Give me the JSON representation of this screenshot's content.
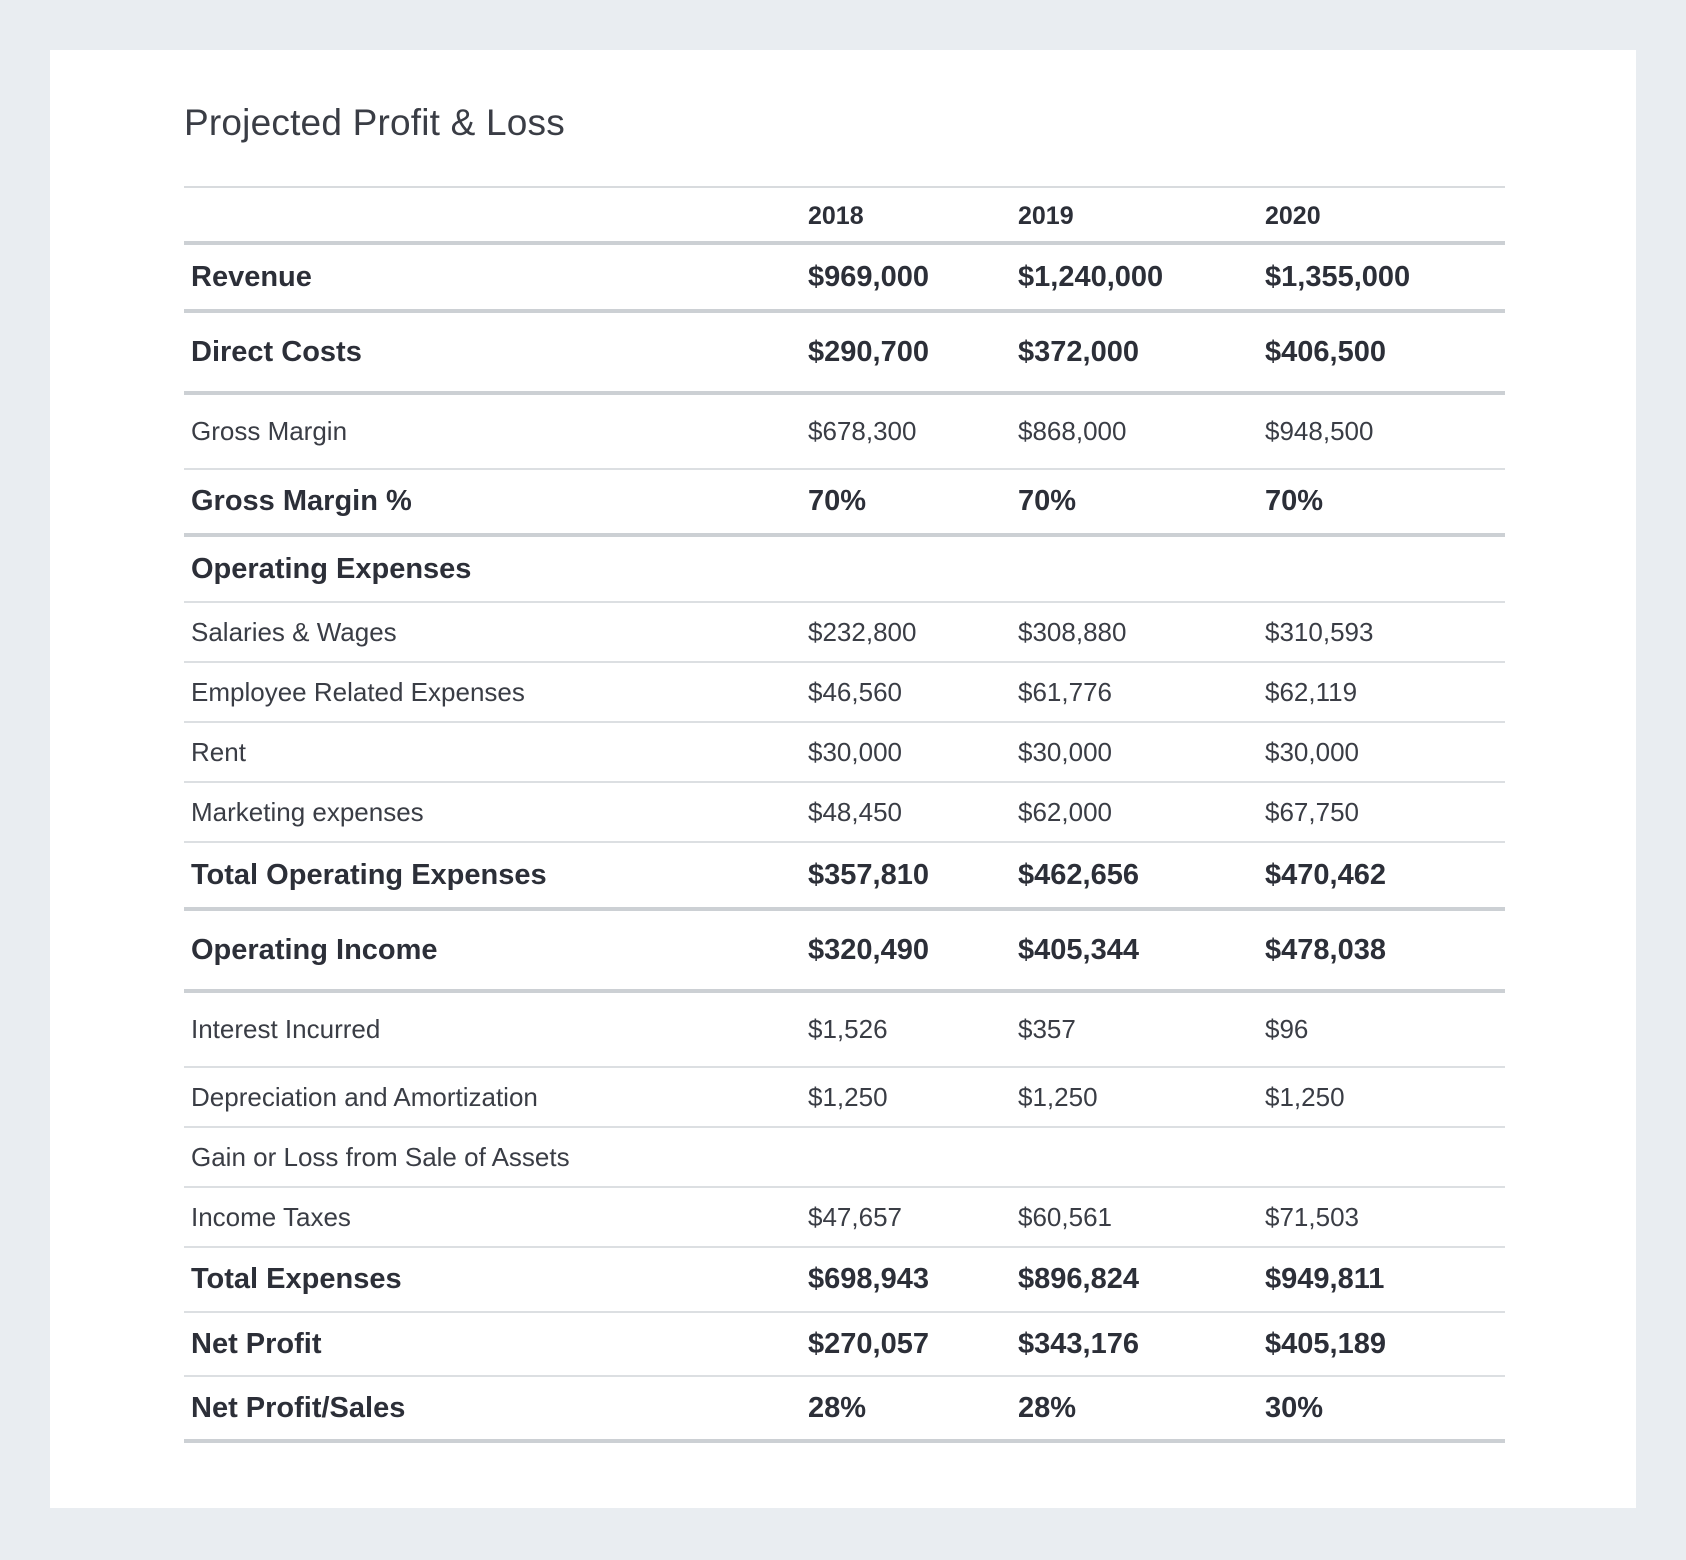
{
  "title": "Projected Profit & Loss",
  "columns": [
    "",
    "2018",
    "2019",
    "2020"
  ],
  "rows": [
    {
      "label": "Revenue",
      "values": [
        "$969,000",
        "$1,240,000",
        "$1,355,000"
      ],
      "bold": true
    },
    {
      "label": "Direct Costs",
      "values": [
        "$290,700",
        "$372,000",
        "$406,500"
      ],
      "bold": true
    },
    {
      "label": "Gross Margin",
      "values": [
        "$678,300",
        "$868,000",
        "$948,500"
      ],
      "bold": false
    },
    {
      "label": "Gross Margin %",
      "values": [
        "70%",
        "70%",
        "70%"
      ],
      "bold": true
    },
    {
      "label": "Operating Expenses",
      "values": [
        "",
        "",
        ""
      ],
      "bold": true
    },
    {
      "label": "Salaries & Wages",
      "values": [
        "$232,800",
        "$308,880",
        "$310,593"
      ],
      "bold": false
    },
    {
      "label": "Employee Related Expenses",
      "values": [
        "$46,560",
        "$61,776",
        "$62,119"
      ],
      "bold": false
    },
    {
      "label": "Rent",
      "values": [
        "$30,000",
        "$30,000",
        "$30,000"
      ],
      "bold": false
    },
    {
      "label": "Marketing expenses",
      "values": [
        "$48,450",
        "$62,000",
        "$67,750"
      ],
      "bold": false
    },
    {
      "label": "Total Operating Expenses",
      "values": [
        "$357,810",
        "$462,656",
        "$470,462"
      ],
      "bold": true
    },
    {
      "label": "Operating Income",
      "values": [
        "$320,490",
        "$405,344",
        "$478,038"
      ],
      "bold": true
    },
    {
      "label": "Interest Incurred",
      "values": [
        "$1,526",
        "$357",
        "$96"
      ],
      "bold": false
    },
    {
      "label": "Depreciation and Amortization",
      "values": [
        "$1,250",
        "$1,250",
        "$1,250"
      ],
      "bold": false
    },
    {
      "label": "Gain or Loss from Sale of Assets",
      "values": [
        "",
        "",
        ""
      ],
      "bold": false
    },
    {
      "label": "Income Taxes",
      "values": [
        "$47,657",
        "$60,561",
        "$71,503"
      ],
      "bold": false
    },
    {
      "label": "Total Expenses",
      "values": [
        "$698,943",
        "$896,824",
        "$949,811"
      ],
      "bold": true
    },
    {
      "label": "Net Profit",
      "values": [
        "$270,057",
        "$343,176",
        "$405,189"
      ],
      "bold": true
    },
    {
      "label": "Net Profit/Sales",
      "values": [
        "28%",
        "28%",
        "30%"
      ],
      "bold": true
    }
  ]
}
